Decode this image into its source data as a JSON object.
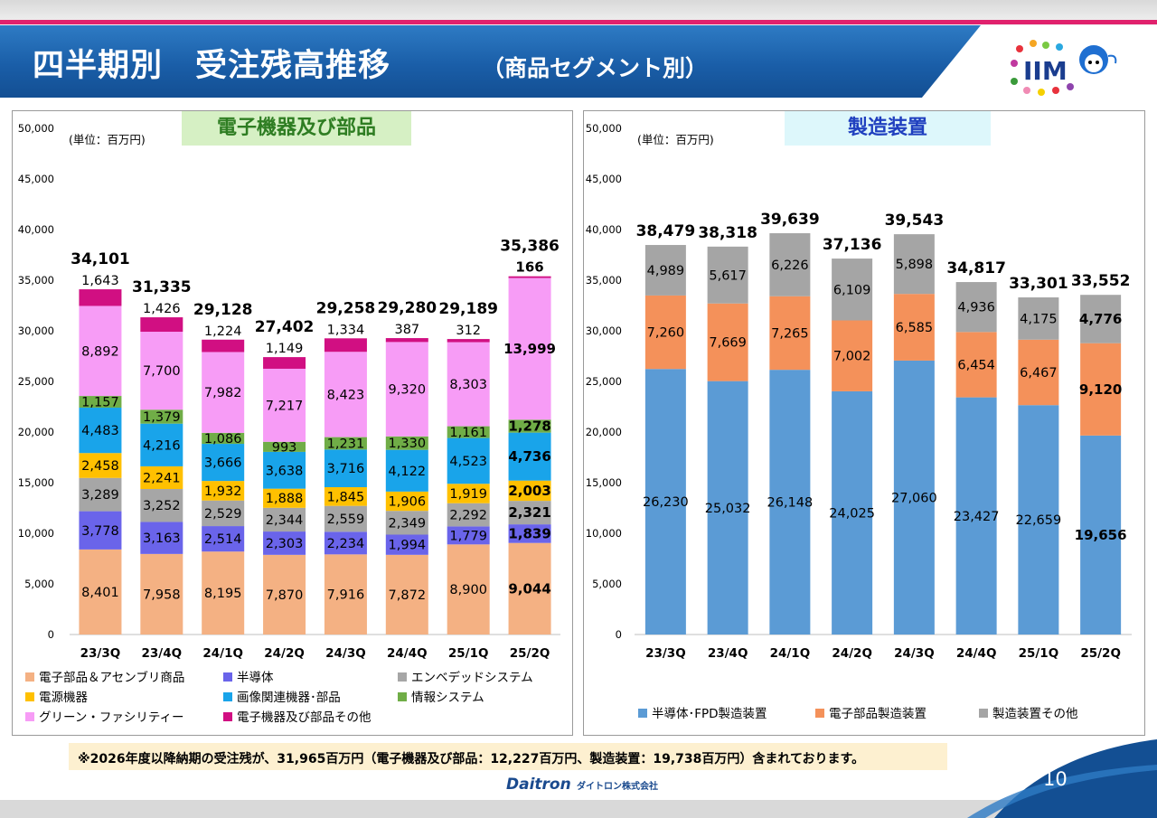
{
  "header": {
    "title": "四半期別　受注残高推移",
    "subtitle": "（商品セグメント別）"
  },
  "logo": {
    "text": "IIM"
  },
  "colors": {
    "electronic_parts": "#f4b183",
    "semiconductor": "#6a64ea",
    "embedded": "#a6a6a6",
    "power": "#ffc000",
    "imaging": "#19a4ea",
    "info_system": "#70ad47",
    "green_facility": "#f79cf6",
    "other_electronic": "#d10f82",
    "mfg_semiconductor_fpd": "#5b9bd5",
    "mfg_electronic_parts": "#f4915a",
    "mfg_other": "#a5a5a5",
    "left_tag_bg": "#d6f0c4",
    "right_tag_bg": "#ddf7fb",
    "right_tag_text": "#1f3fbf"
  },
  "chart_data": [
    {
      "type": "bar",
      "stacked": true,
      "title": "電子機器及び部品",
      "unit_label": "(単位：百万円)",
      "ylim": [
        0,
        50000
      ],
      "yticks": [
        "0",
        "5,000",
        "10,000",
        "15,000",
        "20,000",
        "25,000",
        "30,000",
        "35,000",
        "40,000",
        "45,000",
        "50,000"
      ],
      "categories": [
        "23/3Q",
        "23/4Q",
        "24/1Q",
        "24/2Q",
        "24/3Q",
        "24/4Q",
        "25/1Q",
        "25/2Q"
      ],
      "totals": [
        34101,
        31335,
        29128,
        27402,
        29258,
        29280,
        29189,
        35386
      ],
      "total_labels": [
        "34,101",
        "31,335",
        "29,128",
        "27,402",
        "29,258",
        "29,280",
        "29,189",
        "35,386"
      ],
      "series": [
        {
          "name": "電子部品＆アセンブリ商品",
          "color": "#f4b183",
          "values": [
            8401,
            7958,
            8195,
            7870,
            7916,
            7872,
            8900,
            9044
          ],
          "labels": [
            "8,401",
            "7,958",
            "8,195",
            "7,870",
            "7,916",
            "7,872",
            "8,900",
            "9,044"
          ]
        },
        {
          "name": "半導体",
          "color": "#6a64ea",
          "values": [
            3778,
            3163,
            2514,
            2303,
            2234,
            1994,
            1779,
            1839
          ],
          "labels": [
            "3,778",
            "3,163",
            "2,514",
            "2,303",
            "2,234",
            "1,994",
            "1,779",
            "1,839"
          ]
        },
        {
          "name": "エンベデッドシステム",
          "color": "#a6a6a6",
          "values": [
            3289,
            3252,
            2529,
            2344,
            2559,
            2349,
            2292,
            2321
          ],
          "labels": [
            "3,289",
            "3,252",
            "2,529",
            "2,344",
            "2,559",
            "2,349",
            "2,292",
            "2,321"
          ]
        },
        {
          "name": "電源機器",
          "color": "#ffc000",
          "values": [
            2458,
            2241,
            1932,
            1888,
            1845,
            1906,
            1919,
            2003
          ],
          "labels": [
            "2,458",
            "2,241",
            "1,932",
            "1,888",
            "1,845",
            "1,906",
            "1,919",
            "2,003"
          ]
        },
        {
          "name": "画像関連機器･部品",
          "color": "#19a4ea",
          "values": [
            4483,
            4216,
            3666,
            3638,
            3716,
            4122,
            4523,
            4736
          ],
          "labels": [
            "4,483",
            "4,216",
            "3,666",
            "3,638",
            "3,716",
            "4,122",
            "4,523",
            "4,736"
          ]
        },
        {
          "name": "情報システム",
          "color": "#70ad47",
          "values": [
            1157,
            1379,
            1086,
            993,
            1231,
            1330,
            1161,
            1278
          ],
          "labels": [
            "1,157",
            "1,379",
            "1,086",
            "993",
            "1,231",
            "1,330",
            "1,161",
            "1,278"
          ]
        },
        {
          "name": "グリーン・ファシリティー",
          "color": "#f79cf6",
          "values": [
            8892,
            7700,
            7982,
            7217,
            8423,
            9320,
            8303,
            13999
          ],
          "labels": [
            "8,892",
            "7,700",
            "7,982",
            "7,217",
            "8,423",
            "9,320",
            "8,303",
            "13,999"
          ]
        },
        {
          "name": "電子機器及び部品その他",
          "color": "#d10f82",
          "values": [
            1643,
            1426,
            1224,
            1149,
            1334,
            387,
            312,
            166
          ],
          "labels": [
            "1,643",
            "1,426",
            "1,224",
            "1,149",
            "1,334",
            "387",
            "312",
            "166"
          ]
        }
      ],
      "legend": "bottom"
    },
    {
      "type": "bar",
      "stacked": true,
      "title": "製造装置",
      "unit_label": "(単位：百万円)",
      "ylim": [
        0,
        50000
      ],
      "yticks": [
        "0",
        "5,000",
        "10,000",
        "15,000",
        "20,000",
        "25,000",
        "30,000",
        "35,000",
        "40,000",
        "45,000",
        "50,000"
      ],
      "categories": [
        "23/3Q",
        "23/4Q",
        "24/1Q",
        "24/2Q",
        "24/3Q",
        "24/4Q",
        "25/1Q",
        "25/2Q"
      ],
      "totals": [
        38479,
        38318,
        39639,
        37136,
        39543,
        34817,
        33301,
        33552
      ],
      "total_labels": [
        "38,479",
        "38,318",
        "39,639",
        "37,136",
        "39,543",
        "34,817",
        "33,301",
        "33,552"
      ],
      "series": [
        {
          "name": "半導体･FPD製造装置",
          "color": "#5b9bd5",
          "values": [
            26230,
            25032,
            26148,
            24025,
            27060,
            23427,
            22659,
            19656
          ],
          "labels": [
            "26,230",
            "25,032",
            "26,148",
            "24,025",
            "27,060",
            "23,427",
            "22,659",
            "19,656"
          ]
        },
        {
          "name": "電子部品製造装置",
          "color": "#f4915a",
          "values": [
            7260,
            7669,
            7265,
            7002,
            6585,
            6454,
            6467,
            9120
          ],
          "labels": [
            "7,260",
            "7,669",
            "7,265",
            "7,002",
            "6,585",
            "6,454",
            "6,467",
            "9,120"
          ]
        },
        {
          "name": "製造装置その他",
          "color": "#a5a5a5",
          "values": [
            4989,
            5617,
            6226,
            6109,
            5898,
            4936,
            4175,
            4776
          ],
          "labels": [
            "4,989",
            "5,617",
            "6,226",
            "6,109",
            "5,898",
            "4,936",
            "4,175",
            "4,776"
          ]
        }
      ],
      "legend": "bottom"
    }
  ],
  "note": "※2026年度以降納期の受注残が、31,965百万円（電子機器及び部品：12,227百万円、製造装置：19,738百万円）含まれております。",
  "company": {
    "name": "Daitron",
    "suffix": "ダイトロン株式会社"
  },
  "page_number": "10"
}
